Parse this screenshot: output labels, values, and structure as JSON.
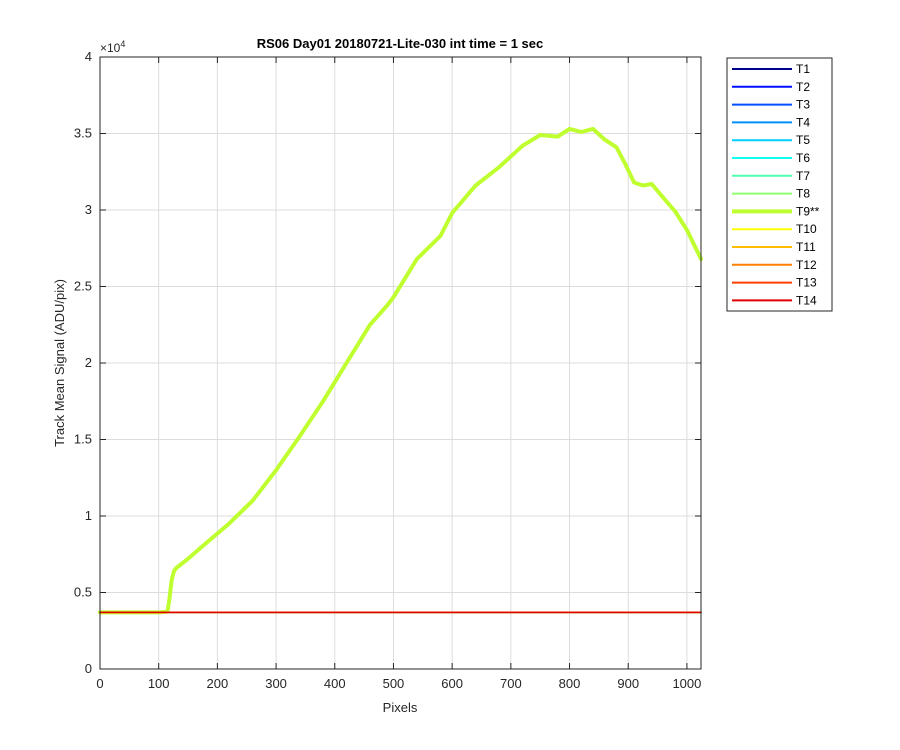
{
  "chart_data": {
    "type": "line",
    "title": "RS06 Day01 20180721-Lite-030 int time = 1 sec",
    "xlabel": "Pixels",
    "ylabel": "Track Mean Signal (ADU/pix)",
    "xlim": [
      0,
      1024
    ],
    "ylim": [
      0,
      40000
    ],
    "y_exponent_label": "×10",
    "y_exponent_power": "4",
    "x_ticks": [
      0,
      100,
      200,
      300,
      400,
      500,
      600,
      700,
      800,
      900,
      1000
    ],
    "x_tick_labels": [
      "0",
      "100",
      "200",
      "300",
      "400",
      "500",
      "600",
      "700",
      "800",
      "900",
      "1000"
    ],
    "y_ticks": [
      0,
      5000,
      10000,
      15000,
      20000,
      25000,
      30000,
      35000,
      40000
    ],
    "y_tick_labels": [
      "0",
      "0.5",
      "1",
      "1.5",
      "2",
      "2.5",
      "3",
      "3.5",
      "4"
    ],
    "grid": true,
    "legend_placement": "outside-right",
    "series": [
      {
        "name": "T1",
        "color": "#00008f",
        "x": [
          0,
          1024
        ],
        "y": [
          3700,
          3700
        ]
      },
      {
        "name": "T2",
        "color": "#0010ff",
        "x": [
          0,
          1024
        ],
        "y": [
          3700,
          3700
        ]
      },
      {
        "name": "T3",
        "color": "#0050ff",
        "x": [
          0,
          1024
        ],
        "y": [
          3700,
          3700
        ]
      },
      {
        "name": "T4",
        "color": "#0090ff",
        "x": [
          0,
          1024
        ],
        "y": [
          3700,
          3700
        ]
      },
      {
        "name": "T5",
        "color": "#00cfff",
        "x": [
          0,
          1024
        ],
        "y": [
          3700,
          3700
        ]
      },
      {
        "name": "T6",
        "color": "#10ffef",
        "x": [
          0,
          1024
        ],
        "y": [
          3700,
          3700
        ]
      },
      {
        "name": "T7",
        "color": "#50ffaf",
        "x": [
          0,
          1024
        ],
        "y": [
          3700,
          3700
        ]
      },
      {
        "name": "T8",
        "color": "#8fff70",
        "x": [
          0,
          1024
        ],
        "y": [
          3700,
          3700
        ]
      },
      {
        "name": "T9**",
        "color": "#bfff30",
        "highlight": true,
        "x": [
          0,
          100,
          115,
          118,
          122,
          126,
          130,
          150,
          180,
          220,
          260,
          300,
          340,
          380,
          420,
          460,
          490,
          500,
          540,
          580,
          600,
          640,
          680,
          720,
          750,
          780,
          800,
          820,
          840,
          860,
          880,
          895,
          910,
          925,
          940,
          960,
          980,
          1000,
          1024
        ],
        "y": [
          3700,
          3700,
          3750,
          4500,
          5800,
          6400,
          6600,
          7200,
          8200,
          9500,
          11000,
          13000,
          15200,
          17500,
          20000,
          22500,
          23800,
          24300,
          26800,
          28300,
          29800,
          31600,
          32800,
          34200,
          34900,
          34800,
          35300,
          35100,
          35300,
          34600,
          34100,
          33000,
          31800,
          31600,
          31700,
          30800,
          29900,
          28700,
          26800
        ]
      },
      {
        "name": "T10",
        "color": "#ffff00",
        "x": [
          0,
          1024
        ],
        "y": [
          3700,
          3700
        ]
      },
      {
        "name": "T11",
        "color": "#ffbf00",
        "x": [
          0,
          1024
        ],
        "y": [
          3700,
          3700
        ]
      },
      {
        "name": "T12",
        "color": "#ff8000",
        "x": [
          0,
          1024
        ],
        "y": [
          3700,
          3700
        ]
      },
      {
        "name": "T13",
        "color": "#ff4000",
        "x": [
          0,
          1024
        ],
        "y": [
          3700,
          3700
        ]
      },
      {
        "name": "T14",
        "color": "#e00000",
        "x": [
          0,
          1024
        ],
        "y": [
          3700,
          3700
        ]
      }
    ]
  }
}
